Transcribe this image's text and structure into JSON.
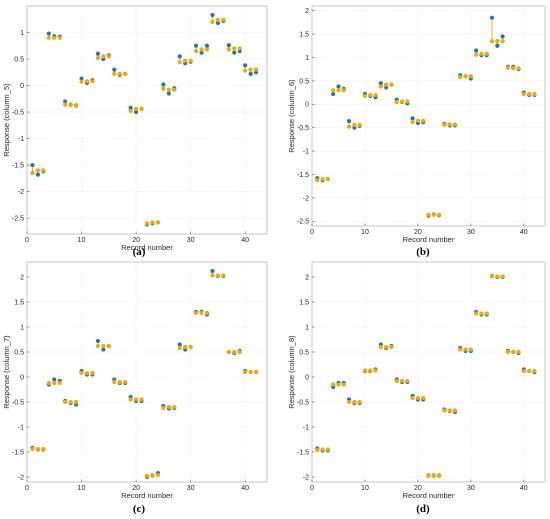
{
  "figure": {
    "panels_order": [
      "a",
      "b",
      "c",
      "d"
    ]
  },
  "chart_data": [
    {
      "type": "scatter",
      "panel_caption": "(a)",
      "xlabel": "Record number",
      "ylabel": "Response (column_5)",
      "xlim": [
        0,
        44
      ],
      "ylim": [
        -2.8,
        1.5
      ],
      "xticks": [
        0,
        10,
        20,
        30,
        40
      ],
      "xtick_labels": [
        "0",
        "10",
        "20",
        "30",
        "40"
      ],
      "yticks": [
        -2.5,
        -2,
        -1.5,
        -1,
        -0.5,
        0,
        0.5,
        1
      ],
      "ytick_labels": [
        "-2.5",
        "-2",
        "-1.5",
        "-1",
        "-0.5",
        "0",
        "0.5",
        "1"
      ],
      "grid": true,
      "series": [
        {
          "color": "#1f77b4",
          "x": [
            1,
            2,
            3,
            4,
            5,
            6,
            7,
            8,
            9,
            10,
            11,
            12,
            13,
            14,
            15,
            16,
            17,
            18,
            19,
            20,
            21,
            22,
            23,
            24,
            25,
            26,
            27,
            28,
            29,
            30,
            31,
            32,
            33,
            34,
            35,
            36,
            37,
            38,
            39,
            40,
            41,
            42
          ],
          "y": [
            -1.5,
            -1.68,
            -1.62,
            0.98,
            0.93,
            0.92,
            -0.3,
            -0.36,
            -0.38,
            0.13,
            0.05,
            0.1,
            0.6,
            0.5,
            0.57,
            0.3,
            0.2,
            0.22,
            -0.42,
            -0.5,
            -0.44,
            -2.62,
            -2.6,
            -2.58,
            0.02,
            -0.15,
            -0.05,
            0.55,
            0.42,
            0.45,
            0.75,
            0.62,
            0.75,
            1.33,
            1.18,
            1.22,
            0.76,
            0.62,
            0.65,
            0.38,
            0.22,
            0.25
          ]
        },
        {
          "color": "#f2a900",
          "x": [
            1,
            2,
            3,
            4,
            5,
            6,
            7,
            8,
            9,
            10,
            11,
            12,
            13,
            14,
            15,
            16,
            17,
            18,
            19,
            20,
            21,
            22,
            23,
            24,
            25,
            26,
            27,
            28,
            29,
            30,
            31,
            32,
            33,
            34,
            35,
            36,
            37,
            38,
            39,
            40,
            41,
            42
          ],
          "y": [
            -1.65,
            -1.6,
            -1.6,
            0.9,
            0.9,
            0.9,
            -0.36,
            -0.37,
            -0.37,
            0.07,
            0.08,
            0.08,
            0.52,
            0.55,
            0.55,
            0.22,
            0.22,
            0.22,
            -0.48,
            -0.44,
            -0.44,
            -2.6,
            -2.58,
            -2.58,
            -0.06,
            -0.08,
            -0.08,
            0.44,
            0.47,
            0.47,
            0.65,
            0.68,
            0.68,
            1.2,
            1.24,
            1.24,
            0.68,
            0.7,
            0.7,
            0.28,
            0.3,
            0.3
          ]
        }
      ]
    },
    {
      "type": "scatter",
      "panel_caption": "(b)",
      "xlabel": "Record number",
      "ylabel": "Response (column_6)",
      "xlim": [
        0,
        44
      ],
      "ylim": [
        -2.6,
        2.1
      ],
      "xticks": [
        0,
        10,
        20,
        30,
        40
      ],
      "xtick_labels": [
        "0",
        "10",
        "20",
        "30",
        "40"
      ],
      "yticks": [
        -2.5,
        -2,
        -1.5,
        -1,
        -0.5,
        0,
        0.5,
        1,
        1.5,
        2
      ],
      "ytick_labels": [
        "-2.5",
        "-2",
        "-1.5",
        "-1",
        "-0.5",
        "0",
        "0.5",
        "1",
        "1.5",
        "2"
      ],
      "grid": true,
      "series": [
        {
          "color": "#1f77b4",
          "x": [
            1,
            2,
            3,
            4,
            5,
            6,
            7,
            8,
            9,
            10,
            11,
            12,
            13,
            14,
            15,
            16,
            17,
            18,
            19,
            20,
            21,
            22,
            23,
            24,
            25,
            26,
            27,
            28,
            29,
            30,
            31,
            32,
            33,
            34,
            35,
            36,
            37,
            38,
            39,
            40,
            41,
            42
          ],
          "y": [
            -1.58,
            -1.62,
            -1.6,
            0.22,
            0.38,
            0.33,
            -0.36,
            -0.5,
            -0.46,
            0.22,
            0.18,
            0.15,
            0.45,
            0.36,
            0.42,
            0.1,
            0.05,
            0.02,
            -0.3,
            -0.4,
            -0.38,
            -2.38,
            -2.35,
            -2.37,
            -0.42,
            -0.45,
            -0.45,
            0.62,
            0.6,
            0.55,
            1.15,
            1.05,
            1.05,
            1.85,
            1.25,
            1.45,
            0.8,
            0.8,
            0.75,
            0.25,
            0.2,
            0.2
          ]
        },
        {
          "color": "#f2a900",
          "x": [
            1,
            2,
            3,
            4,
            5,
            6,
            7,
            8,
            9,
            10,
            11,
            12,
            13,
            14,
            15,
            16,
            17,
            18,
            19,
            20,
            21,
            22,
            23,
            24,
            25,
            26,
            27,
            28,
            29,
            30,
            31,
            32,
            33,
            34,
            35,
            36,
            37,
            38,
            39,
            40,
            41,
            42
          ],
          "y": [
            -1.62,
            -1.6,
            -1.6,
            0.3,
            0.3,
            0.3,
            -0.48,
            -0.44,
            -0.44,
            0.18,
            0.2,
            0.2,
            0.38,
            0.42,
            0.42,
            0.05,
            0.06,
            0.06,
            -0.38,
            -0.35,
            -0.35,
            -2.36,
            -2.36,
            -2.36,
            -0.44,
            -0.43,
            -0.43,
            0.58,
            0.6,
            0.6,
            1.06,
            1.08,
            1.08,
            1.35,
            1.35,
            1.35,
            0.78,
            0.77,
            0.77,
            0.22,
            0.22,
            0.22
          ]
        }
      ]
    },
    {
      "type": "scatter",
      "panel_caption": "(c)",
      "xlabel": "Record number",
      "ylabel": "Response (column_7)",
      "xlim": [
        0,
        44
      ],
      "ylim": [
        -2.1,
        2.3
      ],
      "xticks": [
        0,
        10,
        20,
        30,
        40
      ],
      "xtick_labels": [
        "0",
        "10",
        "20",
        "30",
        "40"
      ],
      "yticks": [
        -2,
        -1.5,
        -1,
        -0.5,
        0,
        0.5,
        1,
        1.5,
        2
      ],
      "ytick_labels": [
        "-2",
        "-1.5",
        "-1",
        "-0.5",
        "0",
        "0.5",
        "1",
        "1.5",
        "2"
      ],
      "grid": true,
      "series": [
        {
          "color": "#1f77b4",
          "x": [
            1,
            2,
            3,
            4,
            5,
            6,
            7,
            8,
            9,
            10,
            11,
            12,
            13,
            14,
            15,
            16,
            17,
            18,
            19,
            20,
            21,
            22,
            23,
            24,
            25,
            26,
            27,
            28,
            29,
            30,
            31,
            32,
            33,
            34,
            35,
            36,
            37,
            38,
            39,
            40,
            41,
            42
          ],
          "y": [
            -1.42,
            -1.45,
            -1.45,
            -0.15,
            -0.05,
            -0.08,
            -0.48,
            -0.52,
            -0.55,
            0.12,
            0.05,
            0.05,
            0.72,
            0.55,
            0.62,
            -0.05,
            -0.12,
            -0.12,
            -0.4,
            -0.48,
            -0.48,
            -2.0,
            -1.97,
            -1.92,
            -0.58,
            -0.63,
            -0.62,
            0.65,
            0.55,
            0.6,
            1.3,
            1.3,
            1.25,
            2.12,
            2.02,
            2.02,
            0.5,
            0.48,
            0.52,
            0.12,
            0.1,
            0.1
          ]
        },
        {
          "color": "#f2a900",
          "x": [
            1,
            2,
            3,
            4,
            5,
            6,
            7,
            8,
            9,
            10,
            11,
            12,
            13,
            14,
            15,
            16,
            17,
            18,
            19,
            20,
            21,
            22,
            23,
            24,
            25,
            26,
            27,
            28,
            29,
            30,
            31,
            32,
            33,
            34,
            35,
            36,
            37,
            38,
            39,
            40,
            41,
            42
          ],
          "y": [
            -1.44,
            -1.44,
            -1.44,
            -0.12,
            -0.12,
            -0.12,
            -0.5,
            -0.5,
            -0.5,
            0.08,
            0.08,
            0.08,
            0.62,
            0.62,
            0.62,
            -0.1,
            -0.1,
            -0.1,
            -0.45,
            -0.45,
            -0.45,
            -1.98,
            -1.96,
            -1.96,
            -0.62,
            -0.6,
            -0.6,
            0.58,
            0.6,
            0.6,
            1.28,
            1.28,
            1.28,
            2.03,
            2.03,
            2.03,
            0.5,
            0.5,
            0.5,
            0.1,
            0.1,
            0.1
          ]
        }
      ]
    },
    {
      "type": "scatter",
      "panel_caption": "(d)",
      "xlabel": "Record number",
      "ylabel": "Response (column_8)",
      "xlim": [
        0,
        44
      ],
      "ylim": [
        -2.1,
        2.3
      ],
      "xticks": [
        0,
        10,
        20,
        30,
        40
      ],
      "xtick_labels": [
        "0",
        "10",
        "20",
        "30",
        "40"
      ],
      "yticks": [
        -2,
        -1.5,
        -1,
        -0.5,
        0,
        0.5,
        1,
        1.5,
        2
      ],
      "ytick_labels": [
        "-2",
        "-1.5",
        "-1",
        "-0.5",
        "0",
        "0.5",
        "1",
        "1.5",
        "2"
      ],
      "grid": true,
      "series": [
        {
          "color": "#1f77b4",
          "x": [
            1,
            2,
            3,
            4,
            5,
            6,
            7,
            8,
            9,
            10,
            11,
            12,
            13,
            14,
            15,
            16,
            17,
            18,
            19,
            20,
            21,
            22,
            23,
            24,
            25,
            26,
            27,
            28,
            29,
            30,
            31,
            32,
            33,
            34,
            35,
            36,
            37,
            38,
            39,
            40,
            41,
            42
          ],
          "y": [
            -1.43,
            -1.47,
            -1.47,
            -0.2,
            -0.12,
            -0.12,
            -0.45,
            -0.52,
            -0.52,
            0.12,
            0.12,
            0.15,
            0.65,
            0.58,
            0.62,
            -0.05,
            -0.1,
            -0.1,
            -0.38,
            -0.45,
            -0.45,
            -1.97,
            -1.97,
            -1.97,
            -0.65,
            -0.68,
            -0.7,
            0.58,
            0.52,
            0.52,
            1.3,
            1.25,
            1.25,
            2.02,
            2.0,
            2.0,
            0.52,
            0.5,
            0.48,
            0.15,
            0.12,
            0.1
          ]
        },
        {
          "color": "#f2a900",
          "x": [
            1,
            2,
            3,
            4,
            5,
            6,
            7,
            8,
            9,
            10,
            11,
            12,
            13,
            14,
            15,
            16,
            17,
            18,
            19,
            20,
            21,
            22,
            23,
            24,
            25,
            26,
            27,
            28,
            29,
            30,
            31,
            32,
            33,
            34,
            35,
            36,
            37,
            38,
            39,
            40,
            41,
            42
          ],
          "y": [
            -1.46,
            -1.45,
            -1.45,
            -0.15,
            -0.15,
            -0.15,
            -0.5,
            -0.5,
            -0.5,
            0.13,
            0.13,
            0.13,
            0.6,
            0.6,
            0.6,
            -0.08,
            -0.08,
            -0.08,
            -0.42,
            -0.42,
            -0.42,
            -1.98,
            -1.98,
            -1.98,
            -0.67,
            -0.67,
            -0.67,
            0.55,
            0.55,
            0.55,
            1.27,
            1.27,
            1.27,
            2.01,
            2.01,
            2.01,
            0.5,
            0.5,
            0.5,
            0.12,
            0.12,
            0.12
          ]
        }
      ]
    }
  ]
}
